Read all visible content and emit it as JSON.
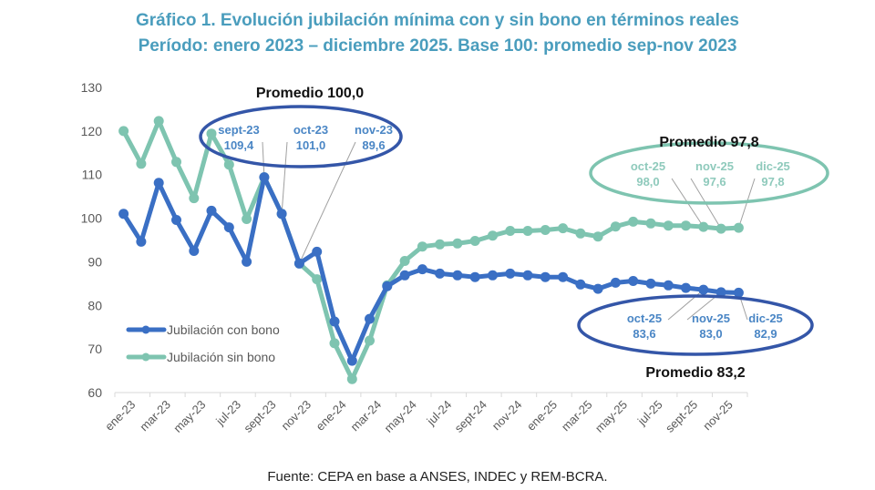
{
  "chart_data": {
    "type": "line",
    "title": "Gráfico 1. Evolución jubilación mínima con y sin bono en términos reales",
    "subtitle": "Período: enero 2023 – diciembre 2025. Base 100: promedio sep-nov 2023",
    "xlabel": "",
    "ylabel": "",
    "ylim": [
      60,
      130
    ],
    "yticks": [
      60,
      70,
      80,
      90,
      100,
      110,
      120,
      130
    ],
    "ytick_labels": [
      "60",
      "70",
      "80",
      "90",
      "100",
      "110",
      "120",
      "130"
    ],
    "x": [
      "ene-23",
      "feb-23",
      "mar-23",
      "abr-23",
      "may-23",
      "jun-23",
      "jul-23",
      "ago-23",
      "sept-23",
      "oct-23",
      "nov-23",
      "dic-23",
      "ene-24",
      "feb-24",
      "mar-24",
      "abr-24",
      "may-24",
      "jun-24",
      "jul-24",
      "ago-24",
      "sept-24",
      "oct-24",
      "nov-24",
      "dic-24",
      "ene-25",
      "feb-25",
      "mar-25",
      "abr-25",
      "may-25",
      "jun-25",
      "jul-25",
      "ago-25",
      "sept-25",
      "oct-25",
      "nov-25",
      "dic-25"
    ],
    "xtick_labels": [
      "ene-23",
      "mar-23",
      "may-23",
      "jul-23",
      "sept-23",
      "nov-23",
      "ene-24",
      "mar-24",
      "may-24",
      "jul-24",
      "sept-24",
      "nov-24",
      "ene-25",
      "mar-25",
      "may-25",
      "jul-25",
      "sept-25",
      "nov-25"
    ],
    "grid": false,
    "legend_position": "bottom-left",
    "series": [
      {
        "name": "Jubilación con bono",
        "color": "#3a6fc4",
        "values": [
          101.0,
          94.6,
          108.1,
          99.6,
          92.5,
          101.7,
          97.9,
          90.0,
          109.4,
          101.0,
          89.6,
          92.3,
          76.3,
          67.3,
          76.9,
          84.4,
          86.9,
          88.3,
          87.3,
          86.9,
          86.5,
          86.9,
          87.3,
          86.9,
          86.5,
          86.5,
          84.8,
          83.8,
          85.2,
          85.6,
          85.0,
          84.6,
          84.0,
          83.6,
          83.0,
          82.9
        ]
      },
      {
        "name": "Jubilación sin bono",
        "color": "#7ec4b0",
        "values": [
          120.0,
          112.5,
          122.3,
          112.9,
          104.6,
          119.4,
          112.3,
          99.8,
          109.4,
          101.0,
          89.6,
          86.0,
          71.3,
          63.1,
          71.9,
          84.6,
          90.2,
          93.5,
          94.0,
          94.2,
          94.8,
          96.0,
          97.1,
          97.1,
          97.3,
          97.7,
          96.5,
          95.8,
          98.1,
          99.2,
          98.8,
          98.3,
          98.3,
          98.0,
          97.6,
          97.8
        ]
      }
    ],
    "annotations": [
      {
        "id": "base",
        "heading": "Promedio 100,0",
        "color": "#3456a8",
        "text_color": "#4a86c5",
        "items": [
          {
            "label": "sept-23",
            "value": "109,4",
            "month_index": 8,
            "series": 1
          },
          {
            "label": "oct-23",
            "value": "101,0",
            "month_index": 9,
            "series": 1
          },
          {
            "label": "nov-23",
            "value": "89,6",
            "month_index": 10,
            "series": 1
          }
        ]
      },
      {
        "id": "sin-bono",
        "heading": "Promedio 97,8",
        "color": "#7ec4b0",
        "text_color": "#8fcabc",
        "items": [
          {
            "label": "oct-25",
            "value": "98,0",
            "month_index": 33,
            "series": 1
          },
          {
            "label": "nov-25",
            "value": "97,6",
            "month_index": 34,
            "series": 1
          },
          {
            "label": "dic-25",
            "value": "97,8",
            "month_index": 35,
            "series": 1
          }
        ]
      },
      {
        "id": "con-bono",
        "heading": "Promedio 83,2",
        "color": "#3456a8",
        "text_color": "#4a86c5",
        "items": [
          {
            "label": "oct-25",
            "value": "83,6",
            "month_index": 33,
            "series": 0
          },
          {
            "label": "nov-25",
            "value": "83,0",
            "month_index": 34,
            "series": 0
          },
          {
            "label": "dic-25",
            "value": "82,9",
            "month_index": 35,
            "series": 0
          }
        ]
      }
    ],
    "source": "Fuente: CEPA en base a ANSES, INDEC y REM-BCRA."
  }
}
